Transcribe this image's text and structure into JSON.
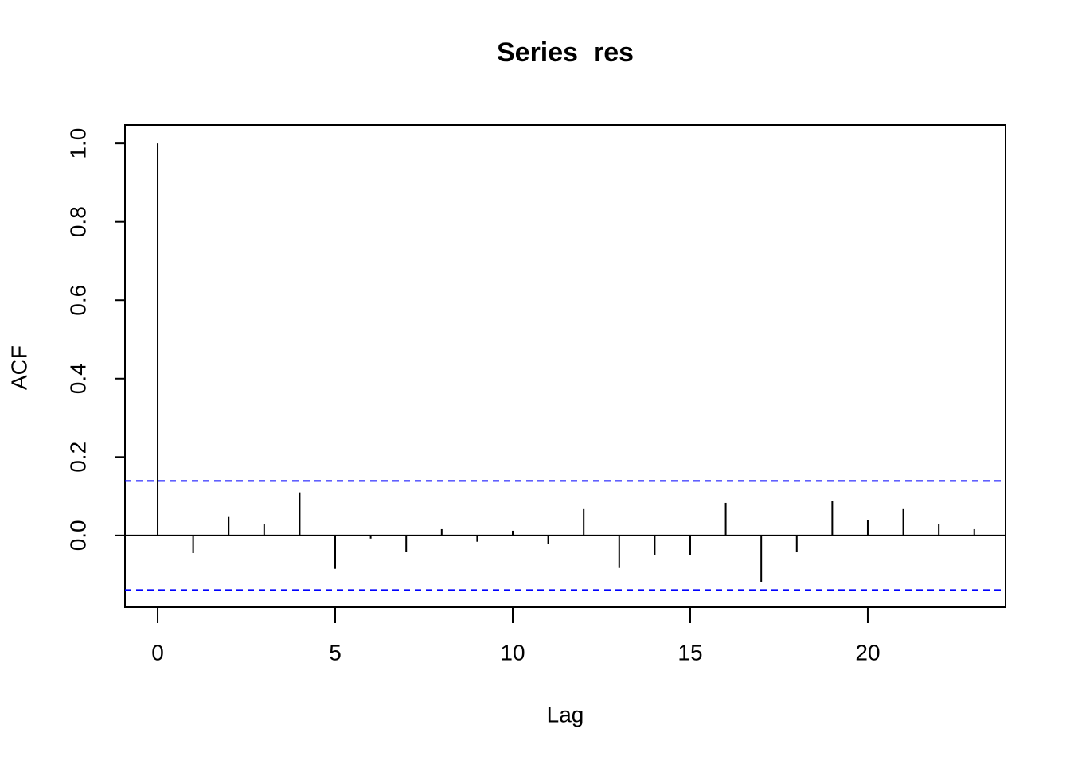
{
  "chart_data": {
    "type": "acf",
    "title": "Series  res",
    "x_label": "Lag",
    "y_label": "ACF",
    "x": [
      0,
      1,
      2,
      3,
      4,
      5,
      6,
      7,
      8,
      9,
      10,
      11,
      12,
      13,
      14,
      15,
      16,
      17,
      18,
      19,
      20,
      21,
      22,
      23
    ],
    "values": [
      1.0,
      -0.045,
      0.047,
      0.03,
      0.11,
      -0.085,
      -0.008,
      -0.041,
      0.016,
      -0.016,
      0.012,
      -0.022,
      0.069,
      -0.083,
      -0.049,
      -0.051,
      0.083,
      -0.118,
      -0.043,
      0.087,
      0.039,
      0.069,
      0.03,
      0.016
    ],
    "color": "#000000",
    "ci_lines": {
      "values": [
        0.139,
        -0.139
      ],
      "color": "#0000ff"
    },
    "xlim": [
      -0.92,
      23.88
    ],
    "ylim": [
      -0.183,
      1.047
    ],
    "xticks": [
      0,
      5,
      10,
      15,
      20
    ],
    "yticks": [
      {
        "value": 0,
        "label": "0.0"
      },
      0.2,
      0.4,
      0.6,
      0.8,
      {
        "value": 1,
        "label": "1.0"
      }
    ]
  }
}
